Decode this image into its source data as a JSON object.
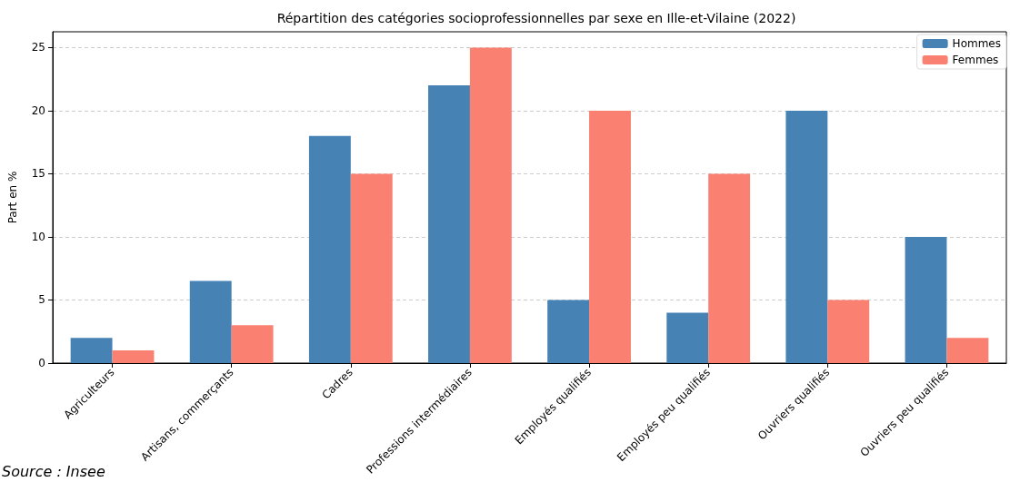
{
  "chart_data": {
    "type": "bar",
    "title": "Répartition des catégories socioprofessionnelles par sexe en Ille-et-Vilaine (2022)",
    "ylabel": "Part en %",
    "categories": [
      "Agriculteurs",
      "Artisans, commerçants",
      "Cadres",
      "Professions intermédiaires",
      "Employés qualifiés",
      "Employés peu qualifiés",
      "Ouvriers qualifiés",
      "Ouvriers peu qualifiés"
    ],
    "series": [
      {
        "name": "Hommes",
        "color": "#4682b4",
        "values": [
          2,
          6.5,
          18,
          22,
          5,
          4,
          20,
          10
        ]
      },
      {
        "name": "Femmes",
        "color": "#fa8072",
        "values": [
          1,
          3,
          15,
          25,
          20,
          15,
          5,
          2
        ]
      }
    ],
    "ylim": [
      0,
      26.25
    ],
    "yticks": [
      0,
      5,
      10,
      15,
      20,
      25
    ],
    "grid": "y",
    "legend": "top right",
    "annotations": [
      "Source : Insee"
    ]
  }
}
